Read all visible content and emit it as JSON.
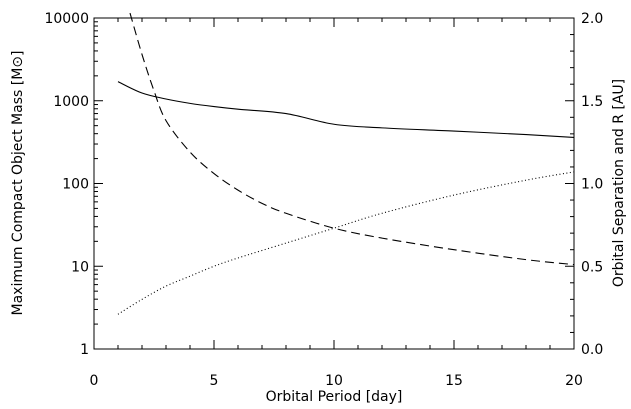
{
  "chart_data": {
    "type": "line",
    "xlabel": "Orbital Period [day]",
    "ylabel_left": "Maximum Compact Object Mass [M⊙]",
    "ylabel_right": "Orbital Separation and R [AU]",
    "xlim": [
      0,
      20
    ],
    "ylim_left": [
      1,
      10000
    ],
    "ylim_right": [
      0.0,
      2.0
    ],
    "yscale_left": "log",
    "yscale_right": "linear",
    "x_ticks": [
      "0",
      "5",
      "10",
      "15",
      "20"
    ],
    "y_left_ticks": [
      "1",
      "10",
      "100",
      "1000",
      "10000"
    ],
    "y_right_ticks": [
      "0.0",
      "0.5",
      "1.0",
      "1.5",
      "2.0"
    ],
    "grid": false,
    "series": [
      {
        "style": "solid",
        "axis": "left",
        "x": [
          1,
          2,
          3,
          4,
          5,
          6,
          8,
          10,
          12,
          15,
          18,
          20
        ],
        "values": [
          1700,
          1240,
          1050,
          930,
          850,
          790,
          700,
          520,
          470,
          430,
          390,
          360
        ]
      },
      {
        "style": "dashed",
        "axis": "right",
        "x": [
          1.5,
          2,
          2.5,
          3,
          4,
          5,
          6,
          7,
          8,
          10,
          12,
          15,
          18,
          20
        ],
        "values": [
          2.03,
          1.78,
          1.56,
          1.38,
          1.19,
          1.06,
          0.96,
          0.88,
          0.82,
          0.73,
          0.67,
          0.6,
          0.54,
          0.51
        ]
      },
      {
        "style": "dotted",
        "axis": "right",
        "x": [
          1,
          2,
          3,
          4,
          5,
          6,
          8,
          10,
          12,
          15,
          18,
          20
        ],
        "values": [
          0.21,
          0.3,
          0.38,
          0.44,
          0.5,
          0.55,
          0.64,
          0.73,
          0.82,
          0.93,
          1.02,
          1.07
        ]
      }
    ]
  }
}
